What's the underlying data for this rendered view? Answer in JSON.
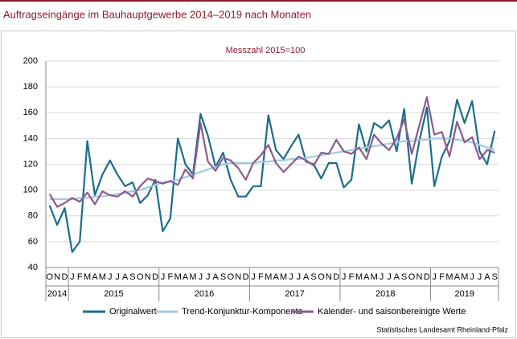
{
  "chart_data": {
    "type": "line",
    "title": "Auftragseingänge im Bauhauptgewerbe 2014–2019 nach Monaten",
    "subtitle": "Messzahl 2015=100",
    "source": "Statistisches Landesamt Rheinland-Pfalz",
    "categories": [
      "O",
      "N",
      "D",
      "J",
      "F",
      "M",
      "A",
      "M",
      "J",
      "J",
      "A",
      "S",
      "O",
      "N",
      "D",
      "J",
      "F",
      "M",
      "A",
      "M",
      "J",
      "J",
      "A",
      "S",
      "O",
      "N",
      "D",
      "J",
      "F",
      "M",
      "A",
      "M",
      "J",
      "J",
      "A",
      "S",
      "O",
      "N",
      "D",
      "J",
      "F",
      "M",
      "A",
      "M",
      "J",
      "J",
      "A",
      "S",
      "O",
      "N",
      "D",
      "J",
      "F",
      "M",
      "A",
      "M",
      "J",
      "J",
      "A",
      "S"
    ],
    "years": [
      "2014",
      "2015",
      "2016",
      "2017",
      "2018",
      "2019"
    ],
    "ylim": [
      40,
      200
    ],
    "yticks": [
      40,
      60,
      80,
      100,
      120,
      140,
      160,
      180,
      200
    ],
    "grid": true,
    "legend": "bottom",
    "series": [
      {
        "name": "Originalwert",
        "color": "#1b6d8c",
        "values": [
          88,
          73,
          86,
          52,
          60,
          138,
          96,
          112,
          123,
          112,
          103,
          106,
          90,
          96,
          108,
          68,
          78,
          140,
          120,
          112,
          159,
          142,
          118,
          129,
          108,
          95,
          95,
          103,
          103,
          158,
          131,
          124,
          134,
          143,
          122,
          120,
          109,
          121,
          121,
          102,
          108,
          151,
          130,
          152,
          148,
          154,
          130,
          163,
          105,
          138,
          164,
          103,
          126,
          138,
          170,
          152,
          169,
          130,
          120,
          146
        ]
      },
      {
        "name": "Trend-Konjunktur-Komponente",
        "color": "#9fcbe3",
        "values": [
          93,
          93,
          93,
          93,
          94,
          94,
          95,
          95,
          96,
          97,
          98,
          99,
          100,
          102,
          104,
          106,
          107,
          108,
          110,
          112,
          114,
          116,
          118,
          120,
          121,
          121,
          121,
          121,
          122,
          122,
          123,
          123,
          124,
          124,
          125,
          126,
          127,
          128,
          129,
          130,
          131,
          132,
          133,
          134,
          135,
          136,
          137,
          138,
          138,
          139,
          139,
          140,
          140,
          140,
          139,
          138,
          137,
          135,
          133,
          131
        ]
      },
      {
        "name": "Kalender- und saisonbereinigte Werte",
        "color": "#8c5a8f",
        "values": [
          97,
          87,
          90,
          94,
          91,
          98,
          89,
          99,
          96,
          95,
          99,
          95,
          103,
          109,
          107,
          105,
          107,
          104,
          116,
          109,
          152,
          122,
          115,
          125,
          123,
          117,
          108,
          121,
          127,
          135,
          121,
          114,
          120,
          126,
          123,
          119,
          129,
          128,
          139,
          130,
          128,
          133,
          124,
          143,
          136,
          131,
          140,
          155,
          128,
          150,
          172,
          143,
          145,
          126,
          153,
          137,
          141,
          124,
          131,
          129
        ]
      }
    ]
  }
}
